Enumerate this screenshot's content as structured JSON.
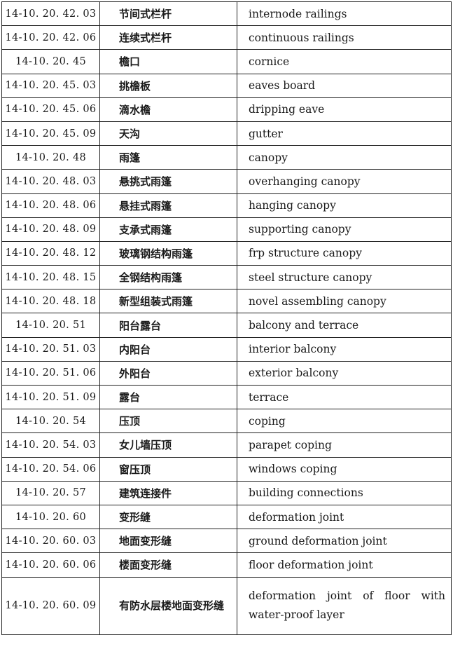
{
  "rows": [
    {
      "code": "14-10. 20. 42. 03",
      "zh": "节间式栏杆",
      "en": "internode railings"
    },
    {
      "code": "14-10. 20. 42. 06",
      "zh": "连续式栏杆",
      "en": "continuous railings"
    },
    {
      "code": "14-10. 20. 45",
      "zh": "檐口",
      "en": "cornice"
    },
    {
      "code": "14-10. 20. 45. 03",
      "zh": "挑檐板",
      "en": "eaves board"
    },
    {
      "code": "14-10. 20. 45. 06",
      "zh": "滴水檐",
      "en": "dripping eave"
    },
    {
      "code": "14-10. 20. 45. 09",
      "zh": "天沟",
      "en": "gutter"
    },
    {
      "code": "14-10. 20. 48",
      "zh": "雨篷",
      "en": "canopy"
    },
    {
      "code": "14-10. 20. 48. 03",
      "zh": "悬挑式雨篷",
      "en": "overhanging canopy"
    },
    {
      "code": "14-10. 20. 48. 06",
      "zh": "悬挂式雨篷",
      "en": "hanging canopy"
    },
    {
      "code": "14-10. 20. 48. 09",
      "zh": "支承式雨篷",
      "en": "supporting canopy"
    },
    {
      "code": "14-10. 20. 48. 12",
      "zh": "玻璃钢结构雨篷",
      "en": "frp structure canopy"
    },
    {
      "code": "14-10. 20. 48. 15",
      "zh": "全钢结构雨篷",
      "en": "steel structure canopy"
    },
    {
      "code": "14-10. 20. 48. 18",
      "zh": "新型组装式雨篷",
      "en": "novel assembling canopy"
    },
    {
      "code": "14-10. 20. 51",
      "zh": "阳台露台",
      "en": "balcony and terrace"
    },
    {
      "code": "14-10. 20. 51. 03",
      "zh": "内阳台",
      "en": "interior balcony"
    },
    {
      "code": "14-10. 20. 51. 06",
      "zh": "外阳台",
      "en": "exterior balcony"
    },
    {
      "code": "14-10. 20. 51. 09",
      "zh": "露台",
      "en": "terrace"
    },
    {
      "code": "14-10. 20. 54",
      "zh": "压顶",
      "en": "coping"
    },
    {
      "code": "14-10. 20. 54. 03",
      "zh": "女儿墙压顶",
      "en": "parapet coping"
    },
    {
      "code": "14-10. 20. 54. 06",
      "zh": "窗压顶",
      "en": "windows coping"
    },
    {
      "code": "14-10. 20. 57",
      "zh": "建筑连接件",
      "en": "building connections"
    },
    {
      "code": "14-10. 20. 60",
      "zh": "变形缝",
      "en": "deformation joint"
    },
    {
      "code": "14-10. 20. 60. 03",
      "zh": "地面变形缝",
      "en": "ground deformation joint"
    },
    {
      "code": "14-10. 20. 60. 06",
      "zh": "楼面变形缝",
      "en": "floor deformation joint"
    },
    {
      "code": "14-10. 20. 60. 09",
      "zh": "有防水层楼地面变形缝",
      "en": "deformation joint of floor with water-proof layer"
    }
  ]
}
